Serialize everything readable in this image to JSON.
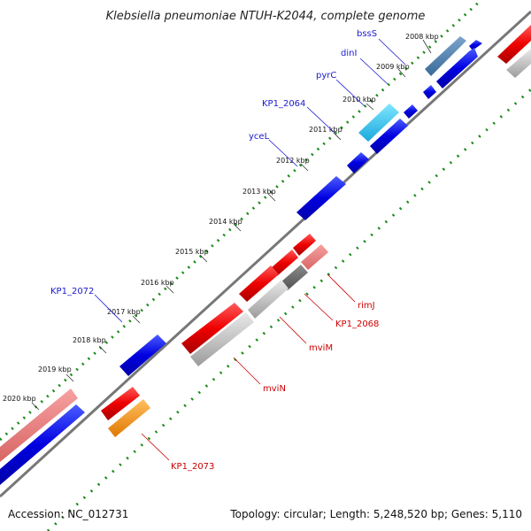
{
  "title": "Klebsiella pneumoniae NTUH-K2044, complete genome",
  "footer": {
    "accession": "Accession: NC_012731",
    "summary": "Topology: circular; Length: 5,248,520 bp; Genes: 5,110"
  },
  "kbp_ticks": [
    {
      "label": "2008 kbp"
    },
    {
      "label": "2009 kbp"
    },
    {
      "label": "2010 kbp"
    },
    {
      "label": "2011 kbp"
    },
    {
      "label": "2012 kbp"
    },
    {
      "label": "2013 kbp"
    },
    {
      "label": "2014 kbp"
    },
    {
      "label": "2015 kbp"
    },
    {
      "label": "2016 kbp"
    },
    {
      "label": "2017 kbp"
    },
    {
      "label": "2018 kbp"
    },
    {
      "label": "2019 kbp"
    },
    {
      "label": "2020 kbp"
    }
  ],
  "gene_labels": [
    {
      "name": "bssS",
      "strand": "forward"
    },
    {
      "name": "dinI",
      "strand": "forward"
    },
    {
      "name": "pyrC",
      "strand": "forward"
    },
    {
      "name": "KP1_2064",
      "strand": "forward"
    },
    {
      "name": "yceL",
      "strand": "forward"
    },
    {
      "name": "KP1_2072",
      "strand": "forward"
    },
    {
      "name": "rimJ",
      "strand": "reverse"
    },
    {
      "name": "KP1_2068",
      "strand": "reverse"
    },
    {
      "name": "mviM",
      "strand": "reverse"
    },
    {
      "name": "mviN",
      "strand": "reverse"
    },
    {
      "name": "KP1_2073",
      "strand": "reverse"
    }
  ],
  "colors": {
    "forward_cds": "#0000ee",
    "reverse_cds": "#ee0000",
    "pseudo": "#c8c8c8",
    "tick": "#1a8a1a",
    "backbone": "#777777",
    "label_blue": "#1a1ad0",
    "label_red": "#cc0000"
  }
}
